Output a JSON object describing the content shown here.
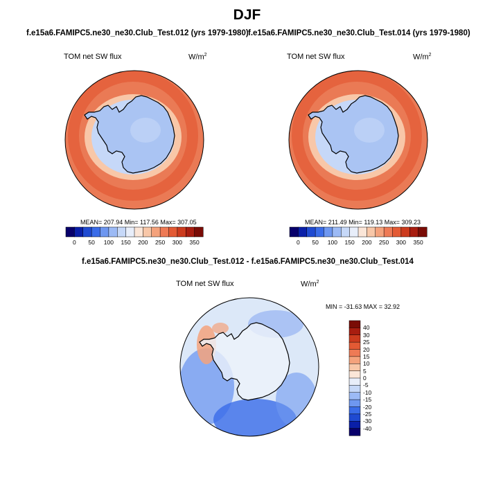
{
  "title": "DJF",
  "panels": [
    {
      "case_title": "f.e15a6.FAMIPC5.ne30_ne30.Club_Test.012 (yrs 1979-1980)",
      "variable": "TOM net SW flux",
      "units": "W/m",
      "units_exp": "2",
      "stats": "MEAN= 207.94  Min= 117.56  Max= 307.05"
    },
    {
      "case_title": "f.e15a6.FAMIPC5.ne30_ne30.Club_Test.014 (yrs 1979-1980)",
      "variable": "TOM net SW flux",
      "units": "W/m",
      "units_exp": "2",
      "stats": "MEAN= 211.49  Min= 119.13  Max= 309.23"
    }
  ],
  "diff_panel": {
    "title": "f.e15a6.FAMIPC5.ne30_ne30.Club_Test.012 - f.e15a6.FAMIPC5.ne30_ne30.Club_Test.014",
    "variable": "TOM net SW flux",
    "units": "W/m",
    "units_exp": "2",
    "stats": "MIN = -31.63 MAX =  32.92"
  },
  "colorbar_abs": {
    "ticks": [
      "0",
      "50",
      "100",
      "150",
      "200",
      "250",
      "300",
      "350"
    ],
    "colors": [
      "#08006b",
      "#0a1fa8",
      "#1f4ad1",
      "#3a6ce8",
      "#6e97f0",
      "#9cbaf5",
      "#c6d8f8",
      "#e8eefa",
      "#fbe6d8",
      "#f8c7a8",
      "#f4a27c",
      "#ee7a55",
      "#e35a34",
      "#cc3b1e",
      "#a81d10",
      "#7a0c06"
    ]
  },
  "colorbar_diff": {
    "ticks": [
      "40",
      "30",
      "25",
      "20",
      "15",
      "10",
      "5",
      "0",
      "-5",
      "-10",
      "-15",
      "-20",
      "-25",
      "-30",
      "-40"
    ],
    "colors": [
      "#7a0c06",
      "#a81d10",
      "#cc3b1e",
      "#e35a34",
      "#ee7a55",
      "#f4a27c",
      "#f8c7a8",
      "#fbe6d8",
      "#e8eefa",
      "#c6d8f8",
      "#9cbaf5",
      "#6e97f0",
      "#3a6ce8",
      "#1f4ad1",
      "#0a1fa8",
      "#08006b"
    ]
  },
  "map_colors": {
    "ocean_abs": "#ea7a55",
    "ocean_abs_dark": "#e35a34",
    "ice_band": "#f8c7a8",
    "antarctica_abs": "#aac4f3",
    "antarctica_abs_light": "#c6d8f8",
    "diff_base": "#dce8f8",
    "diff_blue": "#6e97f0",
    "diff_blue_dark": "#3a6ce8",
    "diff_red": "#f4a27c",
    "land_outline": "#000000"
  }
}
